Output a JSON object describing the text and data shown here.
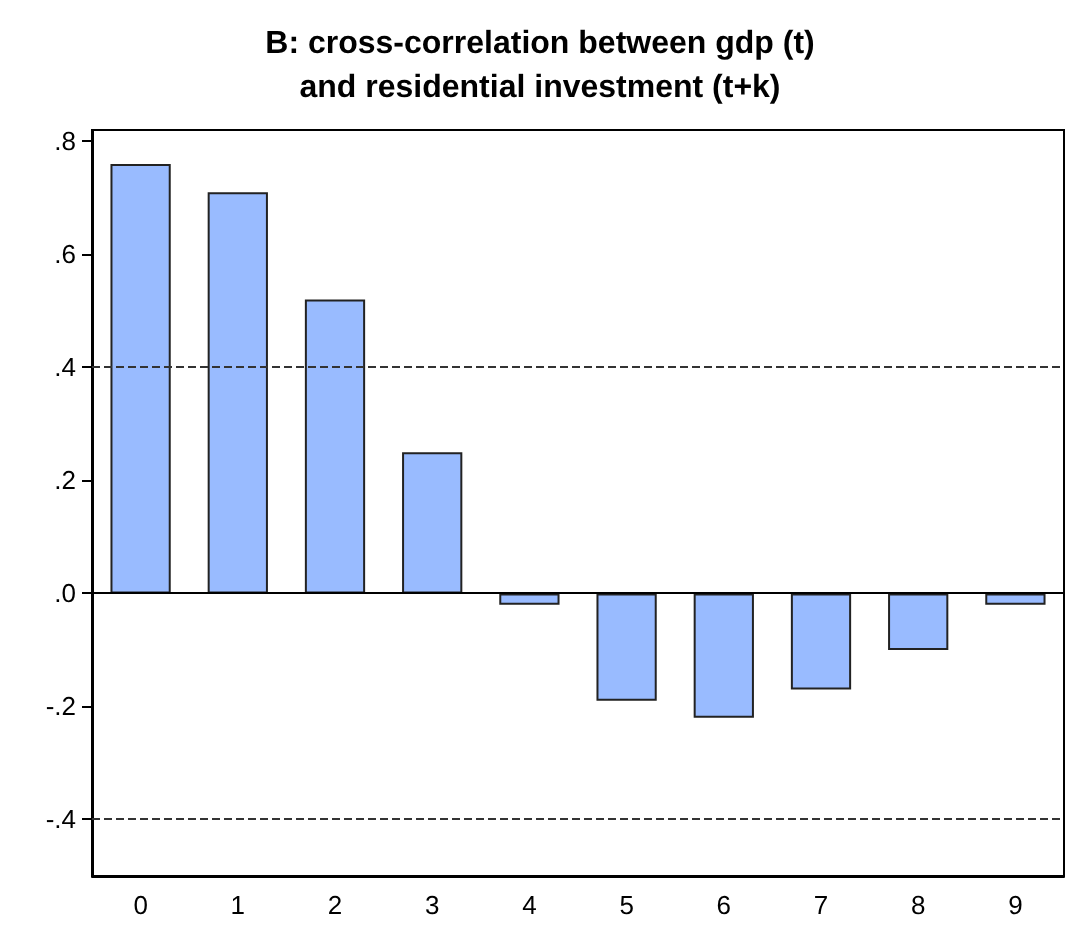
{
  "chart_data": {
    "type": "bar",
    "title": "B: cross-correlation between gdp (t)\nand residential investment (t+k)",
    "categories": [
      "0",
      "1",
      "2",
      "3",
      "4",
      "5",
      "6",
      "7",
      "8",
      "9"
    ],
    "values": [
      0.76,
      0.71,
      0.52,
      0.25,
      -0.02,
      -0.19,
      -0.22,
      -0.17,
      -0.1,
      -0.02
    ],
    "color": "#99bbff",
    "ylim": [
      -0.5,
      0.82
    ],
    "yticks": [
      {
        "value": -0.4,
        "label": "-.4"
      },
      {
        "value": -0.2,
        "label": "-.2"
      },
      {
        "value": 0,
        "label": ".0"
      },
      {
        "value": 0.2,
        "label": ".2"
      },
      {
        "value": 0.4,
        "label": ".4"
      },
      {
        "value": 0.6,
        "label": ".6"
      },
      {
        "value": 0.8,
        "label": ".8"
      }
    ],
    "ref_lines": [
      {
        "axis": "y",
        "value": 0.4,
        "line_style": "dashed"
      },
      {
        "axis": "y",
        "value": -0.4,
        "line_style": "dashed"
      }
    ],
    "grid": false
  }
}
